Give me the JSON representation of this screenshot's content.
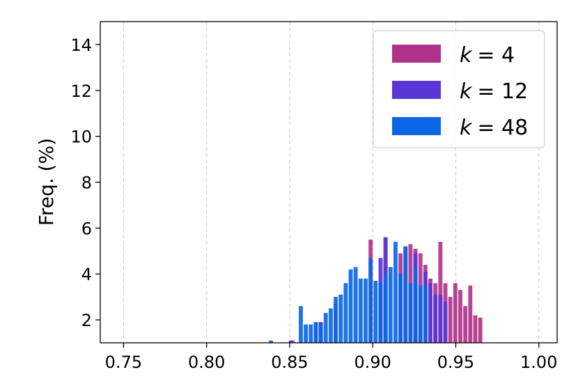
{
  "chart_data": {
    "type": "bar",
    "title": "",
    "xlabel": "",
    "ylabel": "Freq. (%)",
    "xlim": [
      0.736,
      1.011
    ],
    "ylim": [
      1.0,
      15.0
    ],
    "xticks": [
      "0.75",
      "0.80",
      "0.85",
      "0.90",
      "0.95",
      "1.00"
    ],
    "yticks": [
      "2",
      "4",
      "6",
      "8",
      "10",
      "12",
      "14"
    ],
    "grid": "vertical-dashed",
    "legend_position": "top-right",
    "bin_width": 0.003,
    "series": [
      {
        "name": "k = 4",
        "legend_k": "k",
        "legend_value": "= 4",
        "color": "#b0338a",
        "x": [
          0.852,
          0.869,
          0.878,
          0.899,
          0.908,
          0.917,
          0.92,
          0.923,
          0.926,
          0.929,
          0.932,
          0.935,
          0.938,
          0.941,
          0.944,
          0.947,
          0.95,
          0.953,
          0.956,
          0.959,
          0.962,
          0.965
        ],
        "values": [
          1.1,
          1.9,
          2.7,
          5.5,
          5.6,
          4.9,
          5.2,
          5.3,
          5.1,
          4.9,
          4.4,
          3.8,
          3.6,
          5.4,
          3.6,
          3.0,
          3.6,
          3.3,
          2.6,
          3.5,
          2.2,
          2.1
        ]
      },
      {
        "name": "k = 12",
        "legend_k": "k",
        "legend_value": "= 12",
        "color": "#5b35d6",
        "x": [
          0.851,
          0.866,
          0.869,
          0.905,
          0.908,
          0.926,
          0.932,
          0.935,
          0.938,
          0.941,
          0.944
        ],
        "values": [
          1.1,
          1.9,
          1.9,
          4.7,
          5.6,
          4.9,
          4.1,
          3.6,
          3.1,
          3.1,
          2.8
        ]
      },
      {
        "name": "k = 48",
        "legend_k": "k",
        "legend_value": "= 48",
        "color": "#0a67e6",
        "x": [
          0.839,
          0.857,
          0.86,
          0.863,
          0.866,
          0.869,
          0.872,
          0.875,
          0.878,
          0.881,
          0.884,
          0.887,
          0.89,
          0.893,
          0.896,
          0.899,
          0.902,
          0.905,
          0.908,
          0.911,
          0.914,
          0.917,
          0.92,
          0.923,
          0.926,
          0.929,
          0.932
        ],
        "values": [
          1.1,
          2.6,
          1.8,
          1.8,
          1.9,
          1.8,
          2.3,
          2.5,
          3.0,
          3.1,
          3.6,
          4.2,
          4.3,
          3.8,
          3.8,
          4.7,
          3.7,
          3.6,
          4.0,
          4.3,
          5.4,
          4.0,
          5.2,
          3.6,
          4.3,
          3.5,
          3.5
        ]
      }
    ]
  }
}
